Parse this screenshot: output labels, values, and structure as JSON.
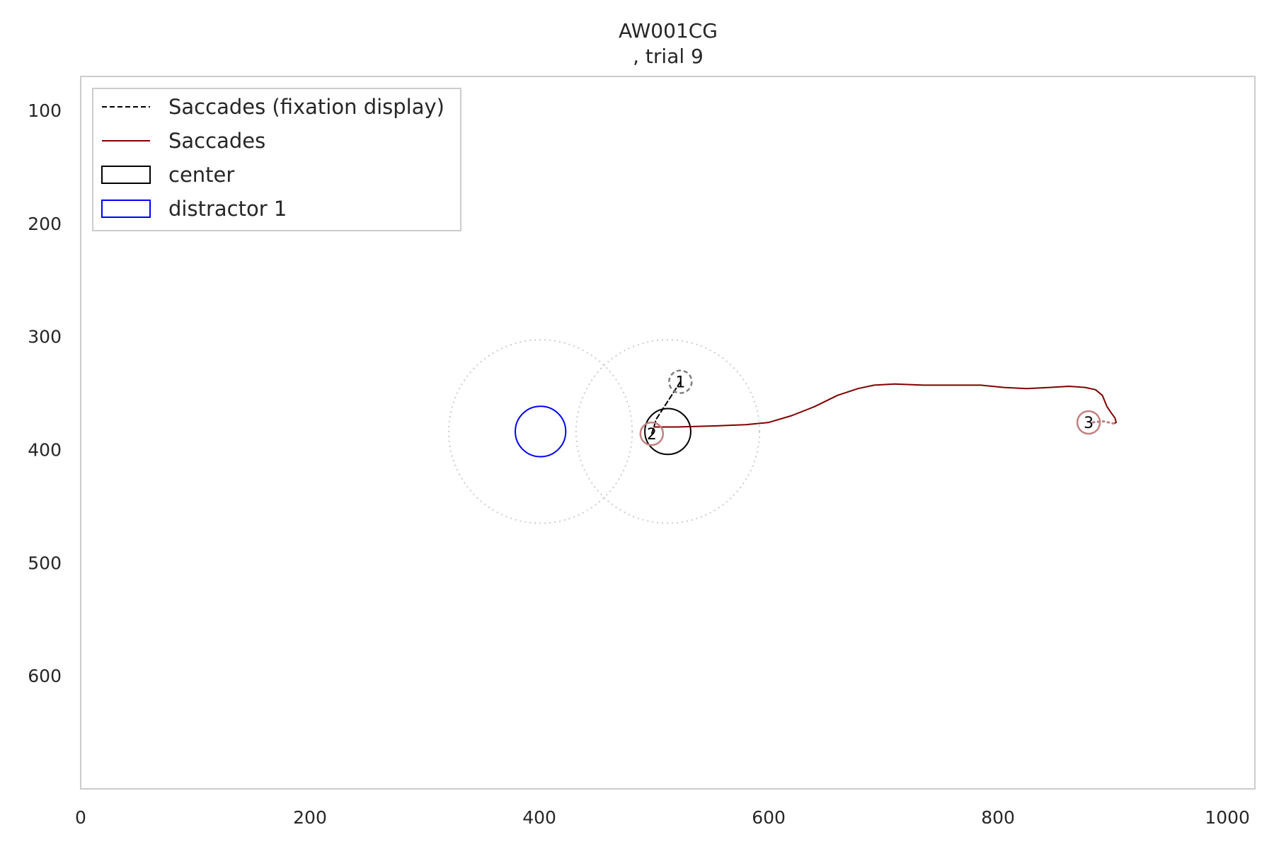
{
  "chart_data": {
    "type": "scatter",
    "title": "AW001CG",
    "subtitle": ", trial 9",
    "xlim": [
      0,
      1024
    ],
    "ylim": [
      700,
      70
    ],
    "y_inverted": true,
    "grid": false,
    "legend_placement": "top-left",
    "x_ticks": [
      0,
      200,
      400,
      600,
      800,
      1000
    ],
    "y_ticks": [
      100,
      200,
      300,
      400,
      500,
      600
    ],
    "legend": [
      {
        "label": "Saccades (fixation display)",
        "kind": "dashed-line",
        "color": "#000000"
      },
      {
        "label": "Saccades",
        "kind": "line",
        "color": "#800000"
      },
      {
        "label": "center",
        "kind": "patch",
        "color": "#000000"
      },
      {
        "label": "distractor 1",
        "kind": "patch",
        "color": "#0000ff"
      }
    ],
    "aois": [
      {
        "name": "center",
        "cx": 512,
        "cy": 384,
        "r": 20,
        "color": "#000000"
      },
      {
        "name": "distractor 1",
        "cx": 401,
        "cy": 384,
        "r": 22,
        "color": "#0000ff"
      }
    ],
    "aoi_zones": [
      {
        "cx": 401,
        "cy": 384,
        "r": 80,
        "color": "#cccccc"
      },
      {
        "cx": 512,
        "cy": 384,
        "r": 80,
        "color": "#cccccc"
      }
    ],
    "fixations": [
      {
        "label": "1",
        "x": 523,
        "y": 340,
        "display": "fixation",
        "color": "#7f7f7f"
      },
      {
        "label": "2",
        "x": 498,
        "y": 386,
        "display": "main",
        "color": "#c08080"
      },
      {
        "label": "3",
        "x": 879,
        "y": 376,
        "display": "main",
        "color": "#c08080"
      }
    ],
    "series": [
      {
        "name": "Saccades (fixation display)",
        "style": "dashed",
        "color": "#000000",
        "x": [
          523,
          502,
          498
        ],
        "y": [
          340,
          373,
          386
        ]
      },
      {
        "name": "Saccades",
        "style": "solid",
        "color": "#800000",
        "x": [
          500,
          520,
          555,
          580,
          600,
          620,
          640,
          660,
          678,
          692,
          710,
          735,
          760,
          785,
          805,
          825,
          845,
          862,
          876,
          885,
          891,
          895,
          899,
          902,
          903,
          901
        ],
        "y": [
          380,
          380,
          379,
          378,
          376,
          370,
          362,
          352,
          346,
          343,
          342,
          343,
          343,
          343,
          345,
          346,
          345,
          344,
          345,
          347,
          352,
          362,
          368,
          372,
          376,
          377
        ]
      },
      {
        "name": "",
        "style": "dotted",
        "color": "#c08080",
        "x": [
          901,
          892,
          882
        ],
        "y": [
          377,
          375,
          376
        ]
      }
    ]
  }
}
